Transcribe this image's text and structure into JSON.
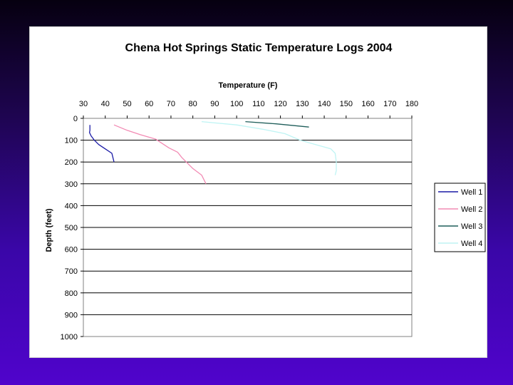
{
  "chart_data": {
    "type": "line",
    "title": "Chena Hot Springs Static Temperature Logs 2004",
    "xlabel": "Temperature (F)",
    "ylabel": "Depth (feet)",
    "xlim": [
      30,
      180
    ],
    "ylim": [
      0,
      1000
    ],
    "x_ticks": [
      30,
      40,
      50,
      60,
      70,
      80,
      90,
      100,
      110,
      120,
      130,
      140,
      150,
      160,
      170,
      180
    ],
    "y_ticks": [
      0,
      100,
      200,
      300,
      400,
      500,
      600,
      700,
      800,
      900,
      1000
    ],
    "x_axis_position": "top",
    "y_axis_inverted": true,
    "grid": "horizontal",
    "legend_position": "right",
    "series": [
      {
        "name": "Well 1",
        "color": "#1a1aa6",
        "points": [
          [
            33,
            30
          ],
          [
            33,
            55
          ],
          [
            32.8,
            65
          ],
          [
            33.5,
            80
          ],
          [
            35,
            100
          ],
          [
            37,
            120
          ],
          [
            40,
            140
          ],
          [
            43,
            160
          ],
          [
            44,
            200
          ]
        ]
      },
      {
        "name": "Well 2",
        "color": "#f28bb4",
        "points": [
          [
            44,
            30
          ],
          [
            50,
            55
          ],
          [
            56,
            75
          ],
          [
            63,
            95
          ],
          [
            66,
            115
          ],
          [
            69,
            135
          ],
          [
            73,
            155
          ],
          [
            75,
            180
          ],
          [
            77,
            200
          ],
          [
            80,
            230
          ],
          [
            84,
            260
          ],
          [
            86,
            300
          ]
        ]
      },
      {
        "name": "Well 3",
        "color": "#1f5e5a",
        "points": [
          [
            104,
            15
          ],
          [
            118,
            25
          ],
          [
            133,
            40
          ]
        ]
      },
      {
        "name": "Well 4",
        "color": "#bff4f4",
        "points": [
          [
            84,
            15
          ],
          [
            100,
            30
          ],
          [
            112,
            50
          ],
          [
            122,
            70
          ],
          [
            129,
            100
          ],
          [
            136,
            120
          ],
          [
            143,
            140
          ],
          [
            145,
            160
          ],
          [
            145.5,
            200
          ],
          [
            145.5,
            240
          ],
          [
            145,
            260
          ]
        ]
      }
    ]
  }
}
